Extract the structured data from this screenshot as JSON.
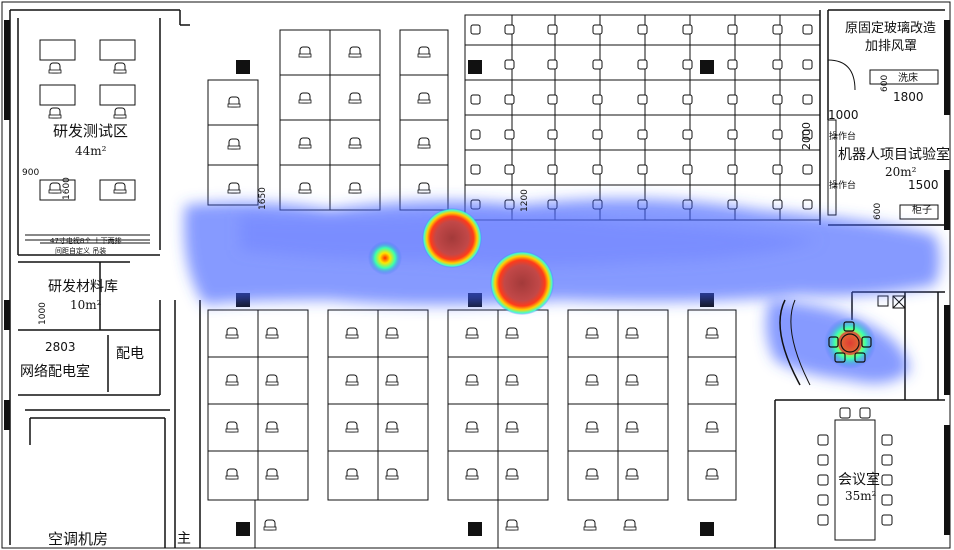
{
  "rooms": {
    "rd_test": {
      "name": "研发测试区",
      "area": "44m²"
    },
    "rd_material": {
      "name": "研发材料库",
      "area": "10m²"
    },
    "network": {
      "name": "网络配电室"
    },
    "power": {
      "name": "配电"
    },
    "hvac": {
      "name": "空调机房"
    },
    "robot_lab": {
      "name": "机器人项目试验室",
      "area": "20m²"
    },
    "meeting": {
      "name": "会议室",
      "area": "35m²"
    },
    "glass_note": {
      "line1": "原固定玻璃改造",
      "line2": "加排风罩"
    },
    "sink": {
      "name": "洗床"
    },
    "cabinet": {
      "name": "柜子"
    },
    "op1": {
      "name": "操作台"
    },
    "op2": {
      "name": "操作台"
    },
    "partial_char": {
      "name": "主"
    }
  },
  "dimensions": {
    "d900": "900",
    "d1600": "1600",
    "d1650": "1650",
    "d1000": "1000",
    "d2803": "2803",
    "d1200": "1200",
    "d600a": "600",
    "d1800": "1800",
    "d1000b": "1000",
    "d2000": "2000",
    "d1500": "1500",
    "d600b": "600"
  },
  "notes": {
    "tv_note": "47寸电视8个 上下两排",
    "tv_note2": "间距自定义 吊装"
  },
  "colors": {
    "wall": "#111111",
    "heat_low": "#3a5cff",
    "heat_mid": "#00e5ff",
    "heat_high": "#ffe600",
    "heat_peak": "#b00000"
  }
}
